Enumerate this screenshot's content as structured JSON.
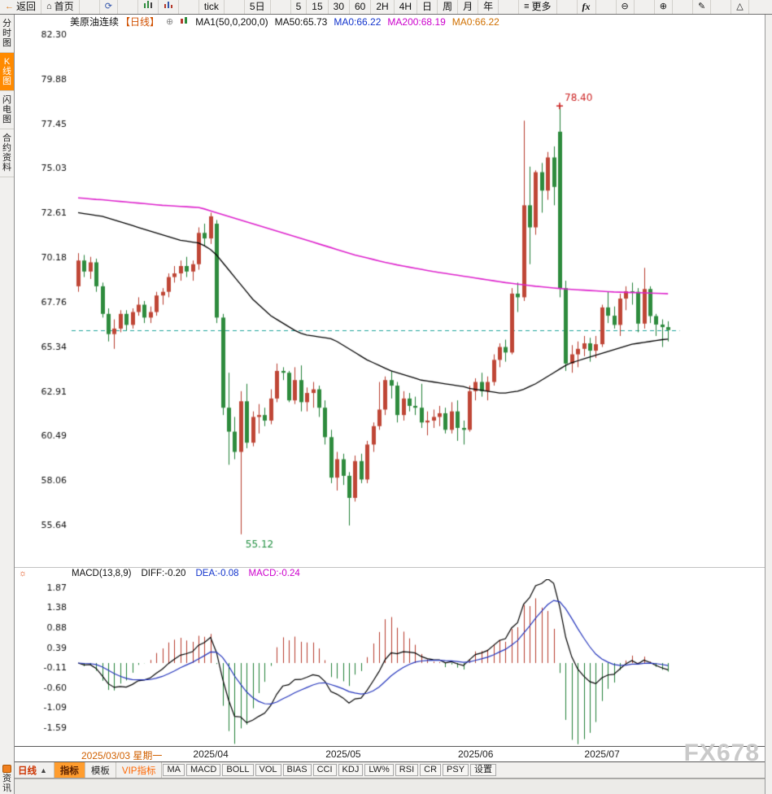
{
  "header": {
    "instrument": "美原油连续",
    "period": "【日线】"
  },
  "icons": {
    "back": "←",
    "home": "⌂",
    "refresh": "⟳",
    "more": "≡",
    "fx": "fx",
    "zoom_out": "⊖",
    "zoom_in": "⊕",
    "pencil": "✎",
    "flag": "△",
    "add": "⊕",
    "sun": "☼",
    "up_triangle": "▲"
  },
  "toolbar": {
    "back": "返回",
    "home": "首页",
    "tick": "tick",
    "five_day": "5日",
    "intervals": [
      "5",
      "15",
      "30",
      "60",
      "2H",
      "4H",
      "日",
      "周",
      "月",
      "年"
    ],
    "more": "更多",
    "fx_label": "fx"
  },
  "sidebar": {
    "tabs": [
      "分时图",
      "K线图",
      "闪电图",
      "合约资料"
    ],
    "active_index": 1,
    "news": "资讯"
  },
  "colors": {
    "up": "#b5392b",
    "up_fill": "#bf4636",
    "down": "#1e7e34",
    "down_fill": "#2e8b3d",
    "ma50": "#000000",
    "ma200": "#dd22cc",
    "diff": "#000000",
    "dea": "#2233bb",
    "last_price_line": "#1fa39a",
    "annotation_up": "#cc2222",
    "annotation_down": "#1e8e3e",
    "accent_orange": "#ff8a00"
  },
  "chart_data": [
    {
      "type": "candlestick",
      "y_ticks": [
        "82.30",
        "79.88",
        "77.45",
        "75.03",
        "72.61",
        "70.18",
        "67.76",
        "65.34",
        "62.91",
        "60.49",
        "58.06",
        "55.64"
      ],
      "x_ticks": [
        {
          "label": "2025/03/03 星期一",
          "index": 0
        },
        {
          "label": "2025/04",
          "index": 21
        },
        {
          "label": "2025/05",
          "index": 43
        },
        {
          "label": "2025/06",
          "index": 65
        },
        {
          "label": "2025/07",
          "index": 86
        }
      ],
      "legend": {
        "ma_group": "MA1(50,0,200,0)",
        "ma50": "MA50:65.73",
        "ma0_blue": "MA0:66.22",
        "ma200": "MA200:68.19",
        "ma0_orange": "MA0:66.22"
      },
      "last_price": 66.22,
      "annotations": {
        "high": {
          "label": "78.40",
          "index": 80
        },
        "low": {
          "label": "55.12",
          "index": 27
        }
      },
      "ohlc": [
        [
          68.6,
          70.4,
          68.3,
          70.0
        ],
        [
          70.0,
          70.3,
          69.1,
          69.4
        ],
        [
          69.4,
          70.2,
          69.0,
          69.9
        ],
        [
          69.9,
          70.1,
          68.3,
          68.6
        ],
        [
          68.6,
          68.8,
          66.9,
          67.1
        ],
        [
          67.1,
          67.4,
          65.6,
          66.0
        ],
        [
          66.0,
          66.8,
          65.2,
          66.3
        ],
        [
          66.3,
          67.3,
          66.1,
          67.1
        ],
        [
          67.1,
          67.3,
          66.2,
          66.5
        ],
        [
          66.5,
          67.4,
          66.3,
          67.2
        ],
        [
          67.2,
          68.0,
          67.0,
          67.6
        ],
        [
          67.6,
          67.8,
          66.6,
          66.9
        ],
        [
          66.9,
          67.5,
          66.6,
          67.2
        ],
        [
          67.2,
          68.3,
          67.0,
          68.1
        ],
        [
          68.1,
          68.5,
          67.6,
          68.3
        ],
        [
          68.3,
          69.3,
          68.0,
          69.1
        ],
        [
          69.1,
          69.7,
          68.8,
          69.3
        ],
        [
          69.3,
          70.0,
          68.9,
          69.7
        ],
        [
          69.7,
          70.2,
          69.1,
          69.4
        ],
        [
          69.4,
          70.0,
          68.9,
          69.8
        ],
        [
          69.8,
          71.8,
          69.5,
          71.5
        ],
        [
          71.5,
          72.0,
          70.8,
          71.2
        ],
        [
          71.2,
          72.6,
          70.9,
          72.4
        ],
        [
          72.0,
          72.2,
          66.6,
          66.9
        ],
        [
          66.9,
          67.1,
          61.6,
          62.0
        ],
        [
          62.0,
          63.9,
          58.9,
          60.7
        ],
        [
          60.7,
          61.5,
          59.2,
          59.6
        ],
        [
          59.6,
          62.9,
          55.12,
          62.35
        ],
        [
          62.35,
          63.3,
          59.8,
          60.1
        ],
        [
          60.1,
          61.8,
          59.9,
          61.5
        ],
        [
          61.5,
          62.2,
          60.6,
          61.6
        ],
        [
          61.6,
          62.0,
          61.0,
          61.3
        ],
        [
          61.3,
          63.0,
          61.1,
          62.5
        ],
        [
          62.5,
          64.4,
          62.3,
          64.0
        ],
        [
          64.0,
          64.2,
          63.5,
          63.9
        ],
        [
          63.9,
          64.0,
          62.3,
          62.4
        ],
        [
          62.4,
          64.2,
          62.2,
          63.5
        ],
        [
          63.5,
          64.3,
          61.8,
          62.3
        ],
        [
          62.3,
          63.1,
          61.8,
          62.8
        ],
        [
          62.8,
          63.4,
          62.0,
          63.0
        ],
        [
          63.0,
          63.2,
          61.5,
          62.0
        ],
        [
          62.0,
          62.4,
          60.0,
          60.4
        ],
        [
          60.4,
          60.8,
          57.9,
          58.2
        ],
        [
          58.2,
          59.6,
          57.5,
          59.2
        ],
        [
          59.2,
          59.5,
          57.8,
          58.3
        ],
        [
          58.3,
          58.5,
          55.6,
          57.1
        ],
        [
          57.1,
          59.4,
          56.9,
          59.1
        ],
        [
          59.1,
          59.5,
          57.9,
          58.1
        ],
        [
          58.1,
          60.2,
          57.9,
          60.0
        ],
        [
          60.0,
          61.2,
          59.6,
          61.0
        ],
        [
          61.0,
          63.4,
          60.8,
          61.9
        ],
        [
          61.9,
          63.7,
          61.6,
          63.5
        ],
        [
          63.5,
          64.0,
          62.5,
          63.2
        ],
        [
          63.2,
          63.4,
          61.2,
          61.6
        ],
        [
          61.6,
          62.9,
          61.3,
          62.5
        ],
        [
          62.5,
          62.8,
          61.8,
          62.1
        ],
        [
          62.1,
          62.6,
          61.6,
          62.0
        ],
        [
          62.0,
          63.3,
          60.9,
          61.2
        ],
        [
          61.2,
          61.8,
          60.5,
          61.3
        ],
        [
          61.3,
          61.9,
          60.9,
          61.5
        ],
        [
          61.5,
          62.1,
          61.0,
          61.7
        ],
        [
          61.7,
          62.0,
          60.6,
          60.8
        ],
        [
          60.8,
          62.3,
          60.6,
          61.8
        ],
        [
          61.8,
          62.4,
          60.2,
          60.9
        ],
        [
          60.9,
          61.3,
          60.0,
          60.8
        ],
        [
          60.8,
          63.2,
          60.7,
          62.9
        ],
        [
          62.9,
          63.6,
          62.4,
          63.4
        ],
        [
          63.4,
          63.9,
          62.6,
          62.9
        ],
        [
          62.9,
          63.7,
          62.4,
          63.4
        ],
        [
          63.4,
          64.9,
          63.2,
          64.6
        ],
        [
          64.6,
          65.5,
          64.2,
          65.3
        ],
        [
          65.3,
          65.7,
          64.5,
          65.0
        ],
        [
          65.0,
          68.5,
          64.9,
          68.2
        ],
        [
          68.2,
          68.8,
          67.2,
          68.0
        ],
        [
          68.0,
          77.6,
          67.8,
          73.0
        ],
        [
          73.0,
          75.1,
          69.8,
          71.8
        ],
        [
          71.8,
          74.9,
          71.4,
          74.8
        ],
        [
          74.8,
          75.3,
          72.6,
          73.8
        ],
        [
          73.8,
          75.9,
          73.3,
          75.6
        ],
        [
          75.6,
          76.2,
          73.0,
          74.0
        ],
        [
          77.0,
          78.4,
          68.0,
          68.5
        ],
        [
          68.5,
          68.9,
          64.0,
          64.4
        ],
        [
          64.4,
          65.4,
          63.9,
          64.9
        ],
        [
          64.9,
          65.6,
          64.2,
          65.2
        ],
        [
          65.2,
          65.9,
          64.8,
          65.5
        ],
        [
          65.5,
          65.8,
          64.5,
          65.1
        ],
        [
          65.1,
          65.9,
          64.7,
          65.45
        ],
        [
          65.45,
          67.6,
          65.3,
          67.45
        ],
        [
          67.45,
          68.3,
          66.6,
          67.0
        ],
        [
          67.0,
          67.5,
          66.3,
          66.5
        ],
        [
          66.5,
          68.2,
          65.9,
          67.93
        ],
        [
          67.93,
          68.6,
          67.3,
          68.33
        ],
        [
          68.33,
          68.8,
          67.6,
          68.3
        ],
        [
          68.3,
          68.5,
          66.1,
          66.57
        ],
        [
          66.57,
          69.6,
          66.3,
          68.45
        ],
        [
          68.45,
          68.6,
          66.6,
          66.98
        ],
        [
          66.98,
          67.1,
          65.9,
          66.52
        ],
        [
          66.52,
          66.8,
          65.3,
          66.38
        ],
        [
          66.38,
          66.7,
          65.6,
          66.22
        ]
      ],
      "ma50": [
        72.6,
        72.55,
        72.5,
        72.45,
        72.4,
        72.3,
        72.2,
        72.1,
        72.0,
        71.9,
        71.8,
        71.7,
        71.6,
        71.5,
        71.4,
        71.3,
        71.2,
        71.1,
        71.05,
        71.0,
        70.95,
        70.8,
        70.6,
        70.3,
        69.9,
        69.5,
        69.1,
        68.7,
        68.3,
        67.9,
        67.6,
        67.3,
        67.0,
        66.8,
        66.6,
        66.4,
        66.2,
        66.05,
        65.95,
        65.9,
        65.85,
        65.8,
        65.75,
        65.6,
        65.4,
        65.2,
        65.0,
        64.8,
        64.6,
        64.45,
        64.3,
        64.15,
        64.0,
        63.9,
        63.8,
        63.7,
        63.6,
        63.5,
        63.45,
        63.4,
        63.35,
        63.3,
        63.25,
        63.2,
        63.15,
        63.05,
        63.0,
        62.95,
        62.9,
        62.85,
        62.8,
        62.8,
        62.85,
        62.9,
        63.0,
        63.15,
        63.3,
        63.5,
        63.7,
        63.9,
        64.1,
        64.3,
        64.45,
        64.55,
        64.65,
        64.75,
        64.85,
        64.95,
        65.05,
        65.15,
        65.25,
        65.35,
        65.45,
        65.5,
        65.55,
        65.6,
        65.65,
        65.7,
        65.73
      ],
      "ma200": [
        73.4,
        73.38,
        73.35,
        73.32,
        73.3,
        73.27,
        73.24,
        73.21,
        73.18,
        73.15,
        73.12,
        73.09,
        73.06,
        73.03,
        73.0,
        72.98,
        72.96,
        72.94,
        72.92,
        72.9,
        72.88,
        72.8,
        72.7,
        72.6,
        72.5,
        72.4,
        72.3,
        72.2,
        72.1,
        72.0,
        71.9,
        71.8,
        71.7,
        71.6,
        71.5,
        71.4,
        71.3,
        71.2,
        71.1,
        71.0,
        70.9,
        70.8,
        70.7,
        70.6,
        70.5,
        70.4,
        70.3,
        70.22,
        70.14,
        70.06,
        69.98,
        69.9,
        69.83,
        69.76,
        69.7,
        69.64,
        69.58,
        69.52,
        69.46,
        69.4,
        69.35,
        69.3,
        69.25,
        69.2,
        69.15,
        69.1,
        69.05,
        69.0,
        68.95,
        68.9,
        68.85,
        68.8,
        68.76,
        68.72,
        68.68,
        68.64,
        68.6,
        68.57,
        68.54,
        68.51,
        68.48,
        68.45,
        68.43,
        68.41,
        68.39,
        68.37,
        68.35,
        68.33,
        68.31,
        68.29,
        68.28,
        68.27,
        68.26,
        68.25,
        68.24,
        68.23,
        68.22,
        68.21,
        68.19
      ]
    },
    {
      "type": "macd",
      "params_label": "MACD(13,8,9)",
      "short": 8,
      "long": 13,
      "signal": 9,
      "y_ticks": [
        "1.87",
        "1.38",
        "0.88",
        "0.39",
        "-0.11",
        "-0.60",
        "-1.09",
        "-1.59"
      ],
      "current": {
        "diff_label": "DIFF:-0.20",
        "dea_label": "DEA:-0.08",
        "macd_label": "MACD:-0.24"
      }
    }
  ],
  "bottom_bar": {
    "period": "日线",
    "indicators_tab": "指标",
    "templates_tab": "模板",
    "vip_tab": "VIP指标",
    "items": [
      "MA",
      "MACD",
      "BOLL",
      "VOL",
      "BIAS",
      "CCI",
      "KDJ",
      "LW%",
      "RSI",
      "CR",
      "PSY"
    ],
    "settings": "设置"
  },
  "watermark": "FX678"
}
